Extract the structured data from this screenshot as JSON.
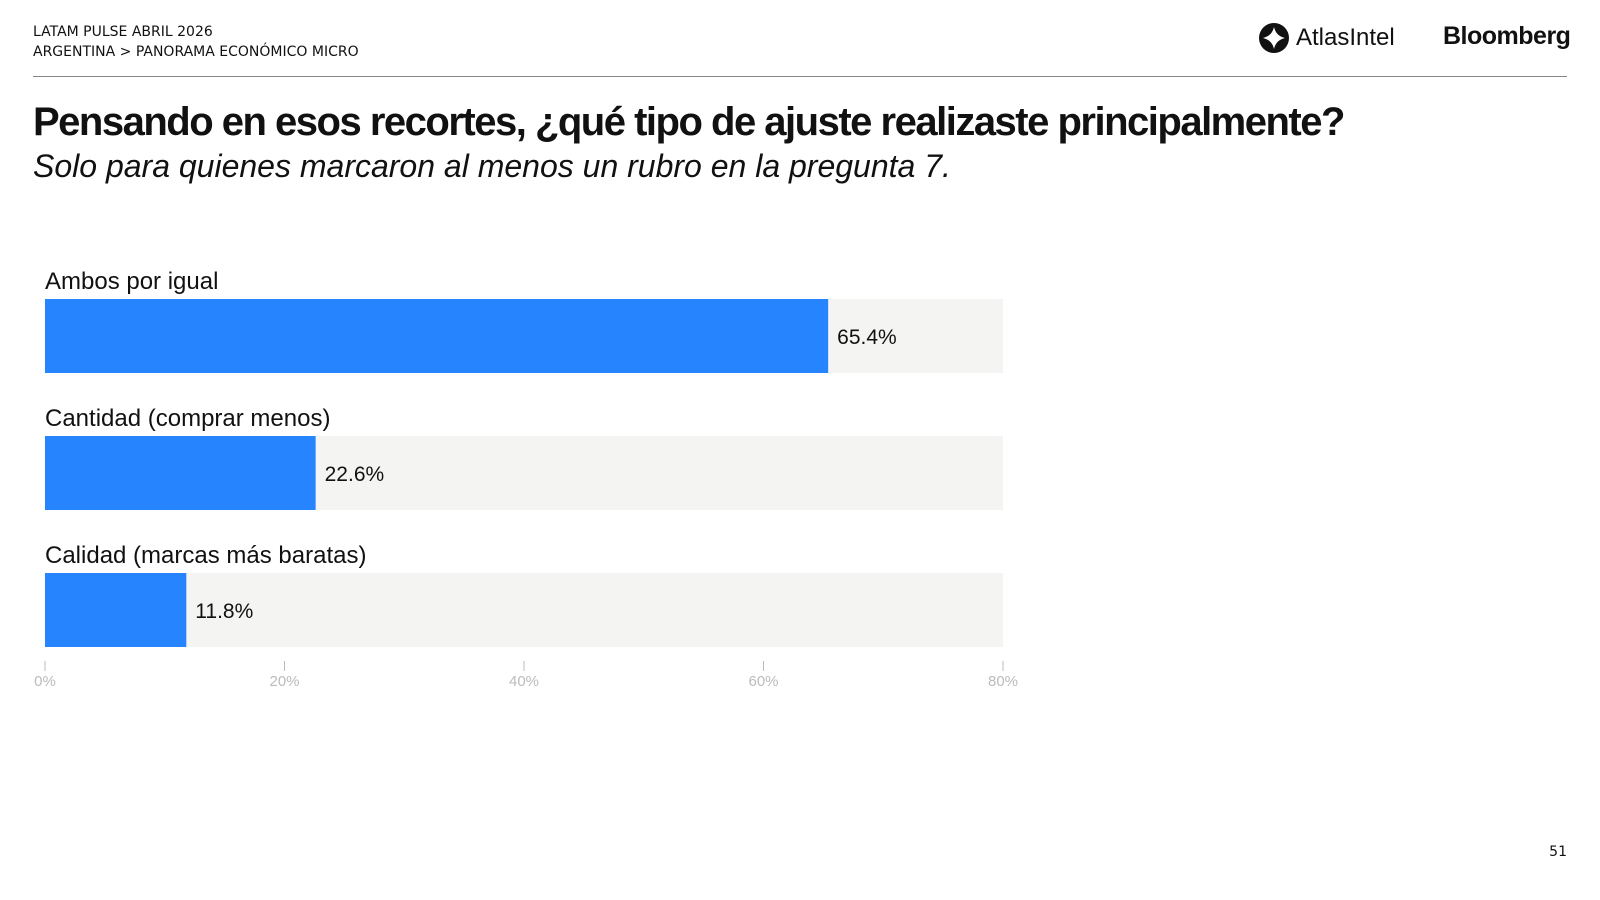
{
  "header": {
    "line1": "LATAM PULSE ABRIL 2026",
    "line2": "ARGENTINA > PANORAMA ECONÓMICO MICRO"
  },
  "logos": {
    "atlas": "AtlasIntel",
    "bloomberg": "Bloomberg"
  },
  "title": "Pensando en esos recortes, ¿qué tipo de ajuste realizaste principalmente?",
  "subtitle": "Solo para quienes marcaron al menos un rubro en la pregunta 7.",
  "page_number": "51",
  "colors": {
    "bar": "#2684FF",
    "track": "#F4F4F3",
    "tick": "#BBBBBB"
  },
  "chart_data": {
    "type": "bar",
    "orientation": "horizontal",
    "categories": [
      "Ambos por igual",
      "Cantidad (comprar menos)",
      "Calidad (marcas más baratas)"
    ],
    "values": [
      65.4,
      22.6,
      11.8
    ],
    "value_labels": [
      "65.4%",
      "22.6%",
      "11.8%"
    ],
    "xlim": [
      0,
      80
    ],
    "xticks": [
      0,
      20,
      40,
      60,
      80
    ],
    "xtick_labels": [
      "0%",
      "20%",
      "40%",
      "60%",
      "80%"
    ],
    "grid": false
  }
}
